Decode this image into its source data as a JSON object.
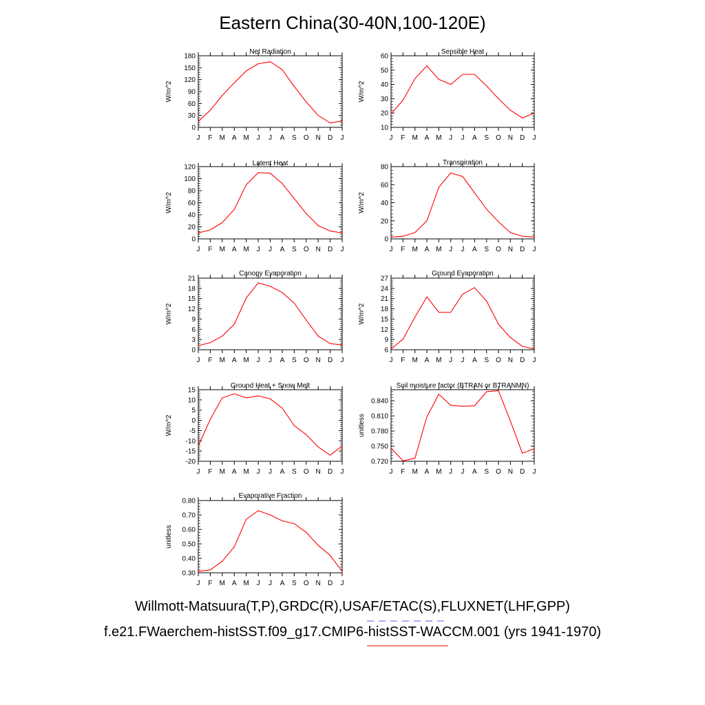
{
  "title": "Eastern China(30-40N,100-120E)",
  "footer": {
    "obs_line": "Willmott-Matsuura(T,P),GRDC(R),USAF/ETAC(S),FLUXNET(LHF,GPP)",
    "obs_line_color": "#5b5bf0",
    "obs_line_style": "dashed",
    "model_line": "f.e21.FWaerchem-histSST.f09_g17.CMIP6-histSST-WACCM.001 (yrs 1941-1970)",
    "model_line_color": "#ff0000",
    "model_line_style": "solid"
  },
  "chart_data": [
    {
      "type": "line",
      "title": "Net Radiation",
      "ylabel": "W/m^2",
      "x": [
        "J",
        "F",
        "M",
        "A",
        "M",
        "J",
        "J",
        "A",
        "S",
        "O",
        "N",
        "D",
        "J"
      ],
      "ylim": [
        0,
        180
      ],
      "yticks": [
        "0",
        "30",
        "60",
        "90",
        "120",
        "150",
        "180"
      ],
      "series": [
        {
          "values": [
            15,
            43,
            80,
            112,
            142,
            160,
            165,
            145,
            103,
            64,
            30,
            11,
            16
          ],
          "color": "#ff0000"
        }
      ]
    },
    {
      "type": "line",
      "title": "Sensible Heat",
      "ylabel": "W/m^2",
      "x": [
        "J",
        "F",
        "M",
        "A",
        "M",
        "J",
        "J",
        "A",
        "S",
        "O",
        "N",
        "D",
        "J"
      ],
      "ylim": [
        10,
        60
      ],
      "yticks": [
        "10",
        "20",
        "30",
        "40",
        "50",
        "60"
      ],
      "series": [
        {
          "values": [
            19.5,
            29,
            44,
            53,
            43.5,
            40,
            47,
            47,
            39,
            30,
            22,
            16.5,
            20
          ],
          "color": "#ff0000"
        }
      ]
    },
    {
      "type": "line",
      "title": "Latent Heat",
      "ylabel": "W/m^2",
      "x": [
        "J",
        "F",
        "M",
        "A",
        "M",
        "J",
        "J",
        "A",
        "S",
        "O",
        "N",
        "D",
        "J"
      ],
      "ylim": [
        0,
        120
      ],
      "yticks": [
        "0",
        "20",
        "40",
        "60",
        "80",
        "100",
        "120"
      ],
      "series": [
        {
          "values": [
            10,
            15,
            27,
            49,
            90,
            110,
            109,
            92,
            67,
            42,
            22,
            13,
            10
          ],
          "color": "#ff0000"
        }
      ]
    },
    {
      "type": "line",
      "title": "Transpiration",
      "ylabel": "W/m^2",
      "x": [
        "J",
        "F",
        "M",
        "A",
        "M",
        "J",
        "J",
        "A",
        "S",
        "O",
        "N",
        "D",
        "J"
      ],
      "ylim": [
        0,
        80
      ],
      "yticks": [
        "0",
        "20",
        "40",
        "60",
        "80"
      ],
      "series": [
        {
          "values": [
            2,
            3,
            7,
            20,
            57,
            73,
            69,
            51,
            33,
            19,
            7,
            3,
            2
          ],
          "color": "#ff0000"
        }
      ]
    },
    {
      "type": "line",
      "title": "Canopy Evaporation",
      "ylabel": "W/m^2",
      "x": [
        "J",
        "F",
        "M",
        "A",
        "M",
        "J",
        "J",
        "A",
        "S",
        "O",
        "N",
        "D",
        "J"
      ],
      "ylim": [
        0,
        21
      ],
      "yticks": [
        "0",
        "3",
        "6",
        "9",
        "12",
        "15",
        "18",
        "21"
      ],
      "series": [
        {
          "values": [
            1.2,
            2.1,
            4.0,
            7.5,
            15.2,
            19.6,
            18.6,
            16.8,
            13.7,
            8.7,
            4.0,
            1.8,
            1.4
          ],
          "color": "#ff0000"
        }
      ]
    },
    {
      "type": "line",
      "title": "Ground Evaporation",
      "ylabel": "W/m^2",
      "x": [
        "J",
        "F",
        "M",
        "A",
        "M",
        "J",
        "J",
        "A",
        "S",
        "O",
        "N",
        "D",
        "J"
      ],
      "ylim": [
        6,
        27
      ],
      "yticks": [
        "6",
        "9",
        "12",
        "15",
        "18",
        "21",
        "24",
        "27"
      ],
      "series": [
        {
          "values": [
            6.2,
            9.1,
            15.6,
            21.5,
            17.0,
            17.0,
            22.3,
            24.2,
            20.3,
            13.5,
            9.6,
            7.0,
            6.2
          ],
          "color": "#ff0000"
        }
      ]
    },
    {
      "type": "line",
      "title": "Ground Heat + Snow Melt",
      "ylabel": "W/m^2",
      "x": [
        "J",
        "F",
        "M",
        "A",
        "M",
        "J",
        "J",
        "A",
        "S",
        "O",
        "N",
        "D",
        "J"
      ],
      "ylim": [
        -20,
        15
      ],
      "yticks": [
        "-20",
        "-15",
        "-10",
        "-5",
        "0",
        "5",
        "10",
        "15"
      ],
      "series": [
        {
          "values": [
            -12.5,
            0.5,
            11,
            13,
            11,
            12,
            10.5,
            6,
            -2.5,
            -7,
            -13,
            -17,
            -12.5
          ],
          "color": "#ff0000"
        }
      ]
    },
    {
      "type": "line",
      "title": "Soil moisture factor (BTRAN or BTRANMN)",
      "ylabel": "unitless",
      "x": [
        "J",
        "F",
        "M",
        "A",
        "M",
        "J",
        "J",
        "A",
        "S",
        "O",
        "N",
        "D",
        "J"
      ],
      "ylim": [
        0.72,
        0.862
      ],
      "yticks": [
        "0.720",
        "0.750",
        "0.780",
        "0.810",
        "0.840"
      ],
      "ytick_values": [
        0.72,
        0.75,
        0.78,
        0.81,
        0.84
      ],
      "series": [
        {
          "values": [
            0.746,
            0.721,
            0.726,
            0.808,
            0.853,
            0.831,
            0.829,
            0.83,
            0.858,
            0.86,
            0.8,
            0.736,
            0.745
          ],
          "color": "#ff0000"
        }
      ]
    },
    {
      "type": "line",
      "title": "Evaporative Fraction",
      "ylabel": "unitless",
      "x": [
        "J",
        "F",
        "M",
        "A",
        "M",
        "J",
        "J",
        "A",
        "S",
        "O",
        "N",
        "D",
        "J"
      ],
      "ylim": [
        0.3,
        0.8
      ],
      "yticks": [
        "0.30",
        "0.40",
        "0.50",
        "0.60",
        "0.70",
        "0.80"
      ],
      "series": [
        {
          "values": [
            0.31,
            0.32,
            0.38,
            0.48,
            0.67,
            0.73,
            0.7,
            0.66,
            0.64,
            0.58,
            0.49,
            0.42,
            0.31
          ],
          "color": "#ff0000"
        }
      ]
    }
  ]
}
